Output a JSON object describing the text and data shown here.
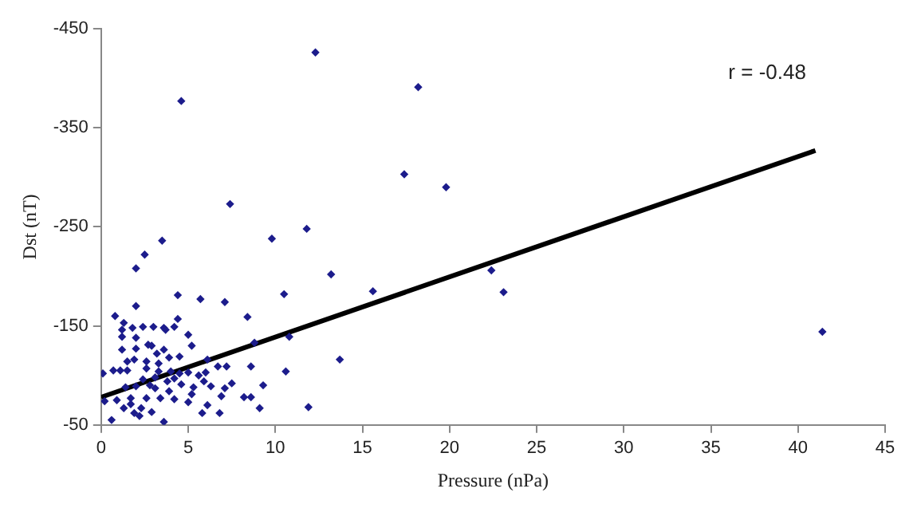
{
  "chart_data": {
    "type": "scatter",
    "xlabel": "Pressure (nPa)",
    "ylabel": "Dst (nT)",
    "annotations": [
      "r = -0.48"
    ],
    "xlim": [
      0,
      45
    ],
    "xticks": [
      0,
      5,
      10,
      15,
      20,
      25,
      30,
      35,
      40,
      45
    ],
    "ylim": [
      -50,
      -450
    ],
    "yticks": [
      -450,
      -350,
      -250,
      -150,
      -50
    ],
    "grid": false,
    "legend": false,
    "marker": "diamond",
    "series": [
      {
        "color": "#1c1c8c",
        "x": [
          4.6,
          12.3,
          18.2,
          7.4,
          17.4,
          19.8,
          9.8,
          11.8,
          3.5,
          2.5,
          2.0,
          13.2,
          22.4,
          23.1,
          41.4,
          15.6,
          13.7,
          4.4,
          5.7,
          7.1,
          10.5,
          2.0,
          0.8,
          1.3,
          1.2,
          1.8,
          2.4,
          3.0,
          3.6,
          3.7,
          4.2,
          4.4,
          8.4,
          5.0,
          1.2,
          2.0,
          2.7,
          2.9,
          5.2,
          8.8,
          10.8,
          1.2,
          2.0,
          3.6,
          3.2,
          4.5,
          3.9,
          6.1,
          1.5,
          1.9,
          2.6,
          3.3,
          0.1,
          0.7,
          1.1,
          1.5,
          2.6,
          3.3,
          4.0,
          4.5,
          5.0,
          5.6,
          6.0,
          6.7,
          7.2,
          8.6,
          10.6,
          2.4,
          3.1,
          3.8,
          4.2,
          4.6,
          5.3,
          5.9,
          6.3,
          7.1,
          7.5,
          9.3,
          1.4,
          2.0,
          3.1,
          5.2,
          3.9,
          4.2,
          3.4,
          2.6,
          1.7,
          0.9,
          6.1,
          6.9,
          8.2,
          8.6,
          9.1,
          6.8,
          5.8,
          5.0,
          1.3,
          1.9,
          2.3,
          2.9,
          3.6,
          0.6,
          2.2,
          11.9,
          0.2,
          1.7,
          2.8
        ],
        "values": [
          -377,
          -426,
          -391,
          -273,
          -303,
          -290,
          -238,
          -248,
          -236,
          -222,
          -208,
          -202,
          -206,
          -184,
          -144,
          -185,
          -116,
          -181,
          -177,
          -174,
          -182,
          -170,
          -160,
          -153,
          -146,
          -148,
          -149,
          -149,
          -148,
          -146,
          -149,
          -157,
          -159,
          -141,
          -139,
          -138,
          -131,
          -130,
          -130,
          -133,
          -139,
          -126,
          -127,
          -126,
          -122,
          -119,
          -118,
          -116,
          -114,
          -116,
          -114,
          -112,
          -102,
          -105,
          -105,
          -105,
          -107,
          -104,
          -104,
          -102,
          -103,
          -100,
          -103,
          -109,
          -109,
          -109,
          -104,
          -96,
          -98,
          -94,
          -97,
          -91,
          -88,
          -94,
          -89,
          -87,
          -92,
          -90,
          -88,
          -89,
          -87,
          -81,
          -84,
          -76,
          -77,
          -77,
          -77,
          -75,
          -70,
          -79,
          -78,
          -78,
          -67,
          -62,
          -62,
          -73,
          -67,
          -62,
          -67,
          -63,
          -53,
          -55,
          -59,
          -68,
          -74,
          -71,
          -90
        ]
      },
      {
        "type": "line",
        "color": "#000000",
        "x": [
          0,
          41
        ],
        "values": [
          -78,
          -327
        ],
        "marker": "none"
      }
    ]
  }
}
